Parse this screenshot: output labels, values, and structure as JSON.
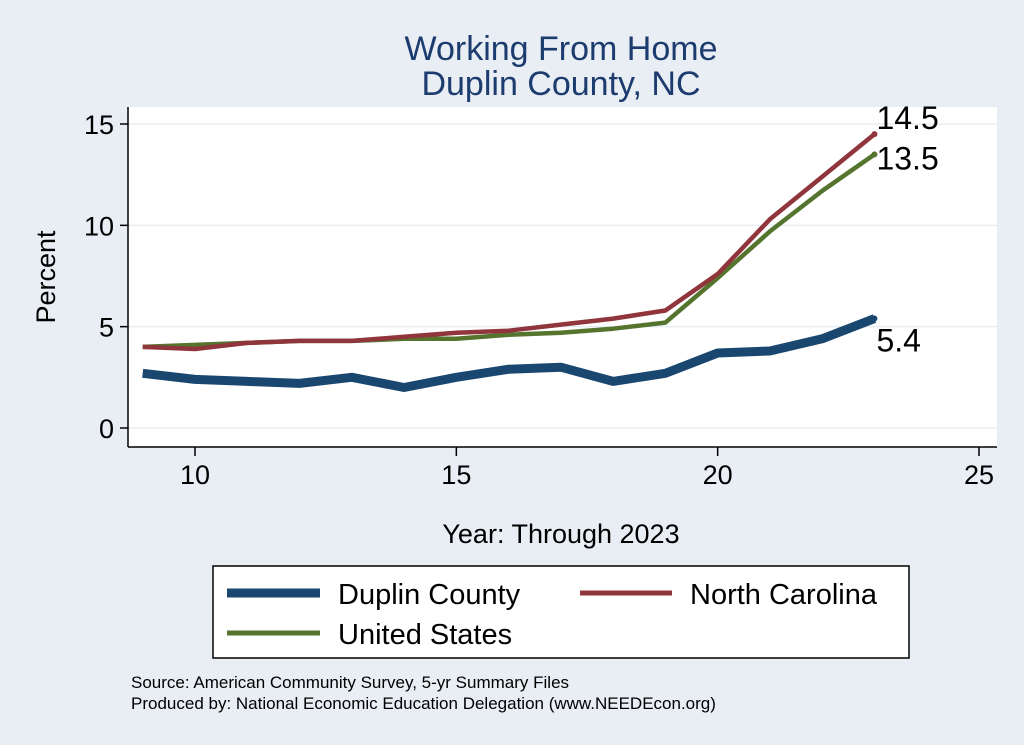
{
  "chart_data": {
    "type": "line",
    "title": [
      "Working From Home",
      "Duplin County, NC"
    ],
    "xlabel": "Year: Through 2023",
    "ylabel": "Percent",
    "xlim": [
      9,
      25
    ],
    "ylim": [
      0,
      15
    ],
    "xticks": [
      10,
      15,
      20,
      25
    ],
    "yticks": [
      0,
      5,
      10,
      15
    ],
    "grid": true,
    "legend_position": "bottom",
    "series": [
      {
        "name": "Duplin County",
        "color": "#1a476f",
        "x": [
          9,
          10,
          11,
          12,
          13,
          14,
          15,
          16,
          17,
          18,
          19,
          20,
          21,
          22,
          23
        ],
        "values": [
          2.7,
          2.4,
          2.3,
          2.2,
          2.5,
          2.0,
          2.5,
          2.9,
          3.0,
          2.3,
          2.7,
          3.7,
          3.8,
          4.4,
          5.4
        ],
        "end_label": "5.4"
      },
      {
        "name": "North Carolina",
        "color": "#90353b",
        "x": [
          9,
          10,
          11,
          12,
          13,
          14,
          15,
          16,
          17,
          18,
          19,
          20,
          21,
          22,
          23
        ],
        "values": [
          4.0,
          3.9,
          4.2,
          4.3,
          4.3,
          4.5,
          4.7,
          4.8,
          5.1,
          5.4,
          5.8,
          7.6,
          10.3,
          12.4,
          14.5
        ],
        "end_label": "14.5"
      },
      {
        "name": "United States",
        "color": "#55752f",
        "x": [
          9,
          10,
          11,
          12,
          13,
          14,
          15,
          16,
          17,
          18,
          19,
          20,
          21,
          22,
          23
        ],
        "values": [
          4.0,
          4.1,
          4.2,
          4.3,
          4.3,
          4.4,
          4.4,
          4.6,
          4.7,
          4.9,
          5.2,
          7.4,
          9.7,
          11.7,
          13.5
        ],
        "end_label": "13.5"
      }
    ],
    "notes": [
      "Source: American Community Survey, 5-yr Summary Files",
      "Produced by: National Economic Education Delegation (www.NEEDEcon.org)"
    ]
  }
}
